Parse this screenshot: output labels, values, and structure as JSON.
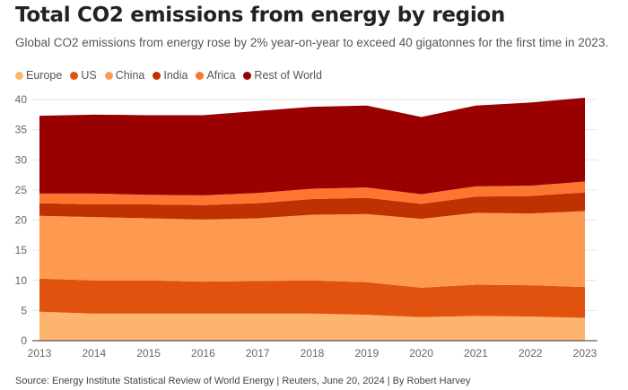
{
  "title": "Total CO2 emissions from energy by region",
  "subtitle": "Global CO2 emissions from energy rose by 2% year-on-year to exceed 40 gigatonnes for the first time in 2023.",
  "source": "Source: Energy Institute Statistical Review of World Energy | Reuters, June 20, 2024 | By Robert Harvey",
  "chart_data": {
    "type": "area",
    "stacked": true,
    "categories": [
      "2013",
      "2014",
      "2015",
      "2016",
      "2017",
      "2018",
      "2019",
      "2020",
      "2021",
      "2022",
      "2023"
    ],
    "ylim": [
      0,
      40
    ],
    "yticks": [
      "0",
      "5",
      "10",
      "15",
      "20",
      "25",
      "30",
      "35",
      "40"
    ],
    "grid": true,
    "legend": "top-left",
    "series": [
      {
        "name": "Europe",
        "color": "#fdb56e",
        "values": [
          4.8,
          4.5,
          4.5,
          4.5,
          4.5,
          4.5,
          4.3,
          3.9,
          4.1,
          4.0,
          3.8
        ]
      },
      {
        "name": "US",
        "color": "#e2520f",
        "values": [
          5.5,
          5.5,
          5.5,
          5.3,
          5.4,
          5.5,
          5.4,
          4.9,
          5.2,
          5.2,
          5.1
        ]
      },
      {
        "name": "China",
        "color": "#fd9a50",
        "values": [
          10.4,
          10.5,
          10.3,
          10.3,
          10.4,
          10.9,
          11.3,
          11.4,
          11.9,
          11.9,
          12.6
        ]
      },
      {
        "name": "India",
        "color": "#bf3100",
        "values": [
          2.1,
          2.1,
          2.3,
          2.4,
          2.5,
          2.6,
          2.7,
          2.5,
          2.7,
          2.9,
          3.1
        ]
      },
      {
        "name": "Africa",
        "color": "#fd7631",
        "values": [
          1.6,
          1.8,
          1.6,
          1.6,
          1.7,
          1.7,
          1.7,
          1.6,
          1.7,
          1.7,
          1.8
        ]
      },
      {
        "name": "Rest of World",
        "color": "#990000",
        "values": [
          12.9,
          13.1,
          13.2,
          13.3,
          13.6,
          13.6,
          13.6,
          12.8,
          13.4,
          13.8,
          13.9
        ]
      }
    ]
  }
}
